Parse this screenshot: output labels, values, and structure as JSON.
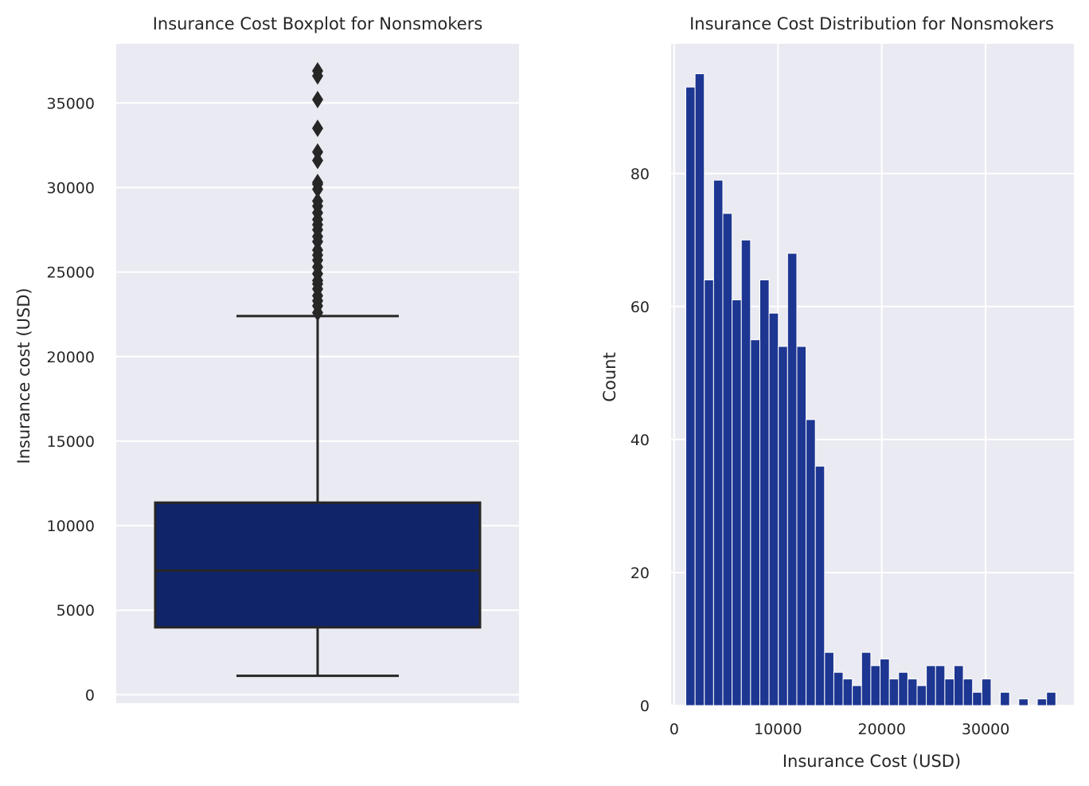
{
  "chart_data": [
    {
      "type": "box",
      "title": "Insurance Cost Boxplot for Nonsmokers",
      "xlabel": "",
      "ylabel": "Insurance cost (USD)",
      "ylim": [
        -500,
        38500
      ],
      "yticks": [
        0,
        5000,
        10000,
        15000,
        20000,
        25000,
        30000,
        35000
      ],
      "grid": true,
      "box": {
        "color": "#102469",
        "whisker_low": 1121,
        "q1": 3986,
        "median": 7345,
        "q3": 11362,
        "whisker_high": 22395,
        "outliers": [
          22600,
          23000,
          23300,
          23600,
          24000,
          24300,
          24500,
          24900,
          25300,
          25700,
          26000,
          26300,
          26800,
          27100,
          27500,
          27800,
          28100,
          28500,
          28900,
          29200,
          29900,
          30200,
          30300,
          31600,
          32100,
          33500,
          35200,
          36600,
          36900
        ]
      }
    },
    {
      "type": "histogram",
      "title": "Insurance Cost Distribution for Nonsmokers",
      "xlabel": "Insurance Cost (USD)",
      "ylabel": "Count",
      "xlim": [
        -300,
        38500
      ],
      "ylim": [
        0,
        99.5
      ],
      "xticks": [
        0,
        10000,
        20000,
        30000
      ],
      "yticks": [
        0,
        20,
        40,
        60,
        80
      ],
      "grid": true,
      "bar_color": "#1d3691",
      "bin_start": 1121,
      "bin_width": 891,
      "counts": [
        93,
        95,
        64,
        79,
        74,
        61,
        70,
        55,
        64,
        59,
        54,
        68,
        54,
        43,
        36,
        8,
        5,
        4,
        3,
        8,
        6,
        7,
        4,
        5,
        4,
        3,
        6,
        6,
        4,
        6,
        4,
        2,
        4,
        0,
        2,
        0,
        1,
        0,
        1,
        2
      ]
    }
  ]
}
